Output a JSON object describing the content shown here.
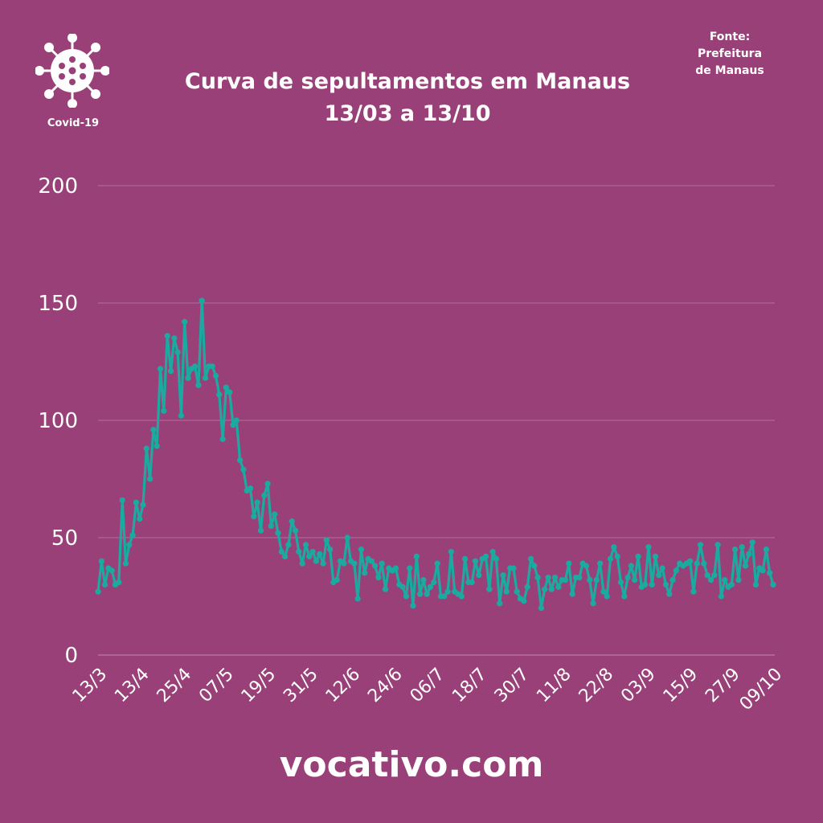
{
  "header": {
    "logo_label": "Covid-19",
    "title_line1": "Curva de sepultamentos em Manaus",
    "title_line2": "13/03 a 13/10",
    "source_line1": "Fonte:",
    "source_line2": "Prefeitura",
    "source_line3": "de Manaus"
  },
  "footer": {
    "text": "vocativo.com"
  },
  "colors": {
    "background": "#9A4079",
    "line": "#1BAAA0",
    "text": "#ffffff",
    "grid": "#B3709A"
  },
  "icons": {
    "logo": "virus-icon"
  },
  "chart_data": {
    "type": "line",
    "title": "Curva de sepultamentos em Manaus",
    "xlabel": "",
    "ylabel": "",
    "ylim": [
      0,
      200
    ],
    "yticks": [
      0,
      50,
      100,
      150,
      200
    ],
    "grid": true,
    "x_start": "13/3",
    "x_tick_labels": [
      "13/3",
      "13/4",
      "25/4",
      "07/5",
      "19/5",
      "31/5",
      "12/6",
      "24/6",
      "06/7",
      "18/7",
      "30/7",
      "11/8",
      "22/8",
      "03/9",
      "15/9",
      "27/9",
      "09/10"
    ],
    "series": [
      {
        "values": [
          27,
          40,
          30,
          37,
          36,
          30,
          31,
          66,
          39,
          47,
          51,
          65,
          58,
          64,
          88,
          75,
          96,
          89,
          122,
          104,
          136,
          121,
          135,
          129,
          102,
          142,
          118,
          122,
          123,
          115,
          151,
          118,
          123,
          123,
          119,
          111,
          92,
          114,
          112,
          98,
          100,
          83,
          79,
          70,
          71,
          59,
          65,
          53,
          68,
          73,
          55,
          60,
          52,
          44,
          42,
          47,
          57,
          53,
          44,
          39,
          47,
          42,
          44,
          40,
          43,
          39,
          49,
          45,
          31,
          32,
          40,
          39,
          50,
          40,
          39,
          24,
          45,
          35,
          41,
          40,
          38,
          33,
          39,
          28,
          37,
          36,
          37,
          30,
          29,
          25,
          37,
          21,
          42,
          26,
          32,
          26,
          29,
          31,
          39,
          25,
          25,
          27,
          44,
          27,
          26,
          25,
          41,
          31,
          31,
          40,
          34,
          41,
          42,
          28,
          44,
          41,
          22,
          34,
          27,
          37,
          37,
          27,
          24,
          23,
          29,
          41,
          38,
          33,
          20,
          28,
          33,
          28,
          33,
          29,
          32,
          32,
          39,
          26,
          33,
          33,
          39,
          38,
          32,
          22,
          32,
          39,
          27,
          25,
          41,
          46,
          42,
          31,
          25,
          33,
          38,
          32,
          42,
          29,
          30,
          46,
          30,
          42,
          34,
          37,
          30,
          26,
          32,
          36,
          39,
          38,
          39,
          40,
          27,
          39,
          47,
          39,
          34,
          32,
          34,
          47,
          25,
          32,
          29,
          30,
          45,
          32,
          46,
          38,
          43,
          48,
          30,
          37,
          36,
          45,
          35,
          30
        ]
      }
    ]
  }
}
